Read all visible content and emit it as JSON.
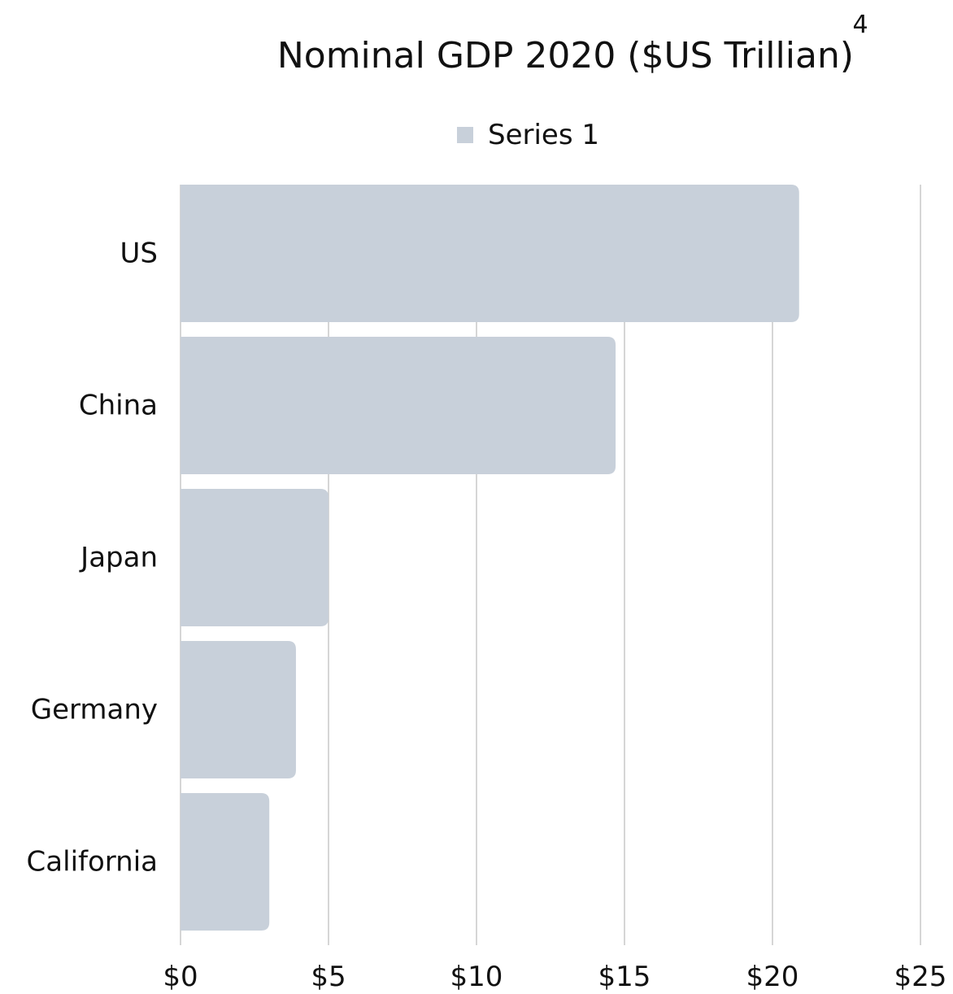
{
  "chart_data": {
    "type": "bar",
    "orientation": "horizontal",
    "title": "Nominal GDP 2020 ($US Trillian)",
    "title_superscript": "4",
    "legend_position": "top",
    "categories": [
      "US",
      "China",
      "Japan",
      "Germany",
      "California"
    ],
    "series": [
      {
        "name": "Series 1",
        "values": [
          20.9,
          14.7,
          5.0,
          3.9,
          3.0
        ]
      }
    ],
    "xlim": [
      0,
      25
    ],
    "x_ticks": [
      0,
      5,
      10,
      15,
      20,
      25
    ],
    "x_tick_labels": [
      "$0",
      "$5",
      "$10",
      "$15",
      "$20",
      "$25"
    ],
    "grid": true,
    "colors": {
      "bar": "#c8d0da",
      "grid": "#c8c8c8",
      "text": "#111111"
    }
  }
}
